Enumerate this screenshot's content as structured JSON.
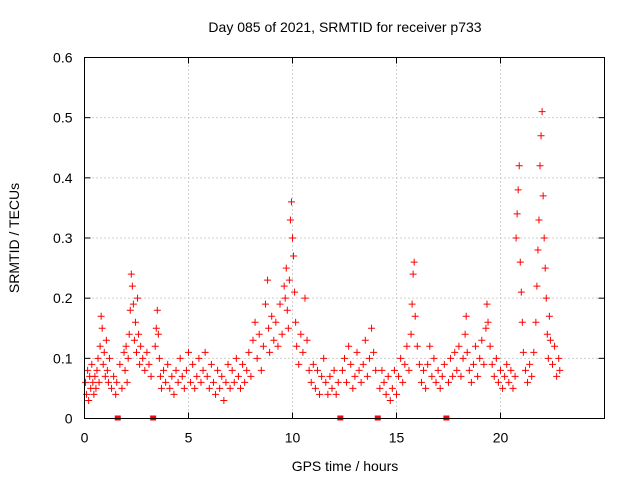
{
  "chart_data": {
    "type": "scatter",
    "title": "Day 085 of 2021, SRMTID for receiver p733",
    "xlabel": "GPS time / hours",
    "ylabel": "SRMTID / TECUs",
    "xlim": [
      0,
      25
    ],
    "ylim": [
      0,
      0.6
    ],
    "xticks": [
      0,
      5,
      10,
      15,
      20
    ],
    "xtick_labels": [
      "0",
      "5",
      "10",
      "15",
      "20"
    ],
    "yticks": [
      0,
      0.1,
      0.2,
      0.3,
      0.4,
      0.5,
      0.6
    ],
    "ytick_labels": [
      "0",
      "0.1",
      "0.2",
      "0.3",
      "0.4",
      "0.5",
      "0.6"
    ],
    "grid": true,
    "marker": "plus",
    "color": "#ff0000",
    "data_gap_markers_x": [
      1.6,
      3.3,
      12.3,
      14.1,
      17.4
    ],
    "series": [
      {
        "name": "SRMTID",
        "points": [
          [
            0.05,
            0.06
          ],
          [
            0.1,
            0.04
          ],
          [
            0.15,
            0.08
          ],
          [
            0.2,
            0.03
          ],
          [
            0.25,
            0.07
          ],
          [
            0.3,
            0.05
          ],
          [
            0.35,
            0.09
          ],
          [
            0.4,
            0.06
          ],
          [
            0.45,
            0.04
          ],
          [
            0.5,
            0.07
          ],
          [
            0.55,
            0.05
          ],
          [
            0.6,
            0.08
          ],
          [
            0.65,
            0.1
          ],
          [
            0.7,
            0.06
          ],
          [
            0.75,
            0.12
          ],
          [
            0.8,
            0.17
          ],
          [
            0.85,
            0.15
          ],
          [
            0.9,
            0.09
          ],
          [
            0.95,
            0.11
          ],
          [
            1.0,
            0.07
          ],
          [
            1.05,
            0.13
          ],
          [
            1.1,
            0.08
          ],
          [
            1.15,
            0.06
          ],
          [
            1.2,
            0.1
          ],
          [
            1.3,
            0.05
          ],
          [
            1.4,
            0.07
          ],
          [
            1.5,
            0.04
          ],
          [
            1.55,
            0.06
          ],
          [
            1.7,
            0.09
          ],
          [
            1.8,
            0.05
          ],
          [
            1.9,
            0.11
          ],
          [
            1.95,
            0.08
          ],
          [
            2.0,
            0.12
          ],
          [
            2.05,
            0.06
          ],
          [
            2.1,
            0.1
          ],
          [
            2.15,
            0.14
          ],
          [
            2.2,
            0.18
          ],
          [
            2.25,
            0.24
          ],
          [
            2.3,
            0.22
          ],
          [
            2.35,
            0.19
          ],
          [
            2.4,
            0.13
          ],
          [
            2.45,
            0.16
          ],
          [
            2.5,
            0.11
          ],
          [
            2.55,
            0.2
          ],
          [
            2.6,
            0.14
          ],
          [
            2.65,
            0.09
          ],
          [
            2.7,
            0.12
          ],
          [
            2.8,
            0.1
          ],
          [
            2.9,
            0.08
          ],
          [
            3.0,
            0.11
          ],
          [
            3.1,
            0.09
          ],
          [
            3.2,
            0.07
          ],
          [
            3.4,
            0.12
          ],
          [
            3.45,
            0.15
          ],
          [
            3.5,
            0.18
          ],
          [
            3.55,
            0.14
          ],
          [
            3.6,
            0.1
          ],
          [
            3.65,
            0.07
          ],
          [
            3.7,
            0.05
          ],
          [
            3.8,
            0.08
          ],
          [
            3.9,
            0.06
          ],
          [
            4.0,
            0.09
          ],
          [
            4.1,
            0.05
          ],
          [
            4.2,
            0.07
          ],
          [
            4.3,
            0.04
          ],
          [
            4.4,
            0.08
          ],
          [
            4.5,
            0.06
          ],
          [
            4.6,
            0.1
          ],
          [
            4.7,
            0.07
          ],
          [
            4.8,
            0.05
          ],
          [
            4.9,
            0.08
          ],
          [
            5.0,
            0.11
          ],
          [
            5.1,
            0.06
          ],
          [
            5.2,
            0.09
          ],
          [
            5.3,
            0.05
          ],
          [
            5.4,
            0.07
          ],
          [
            5.5,
            0.1
          ],
          [
            5.6,
            0.06
          ],
          [
            5.7,
            0.08
          ],
          [
            5.8,
            0.11
          ],
          [
            5.9,
            0.07
          ],
          [
            6.0,
            0.05
          ],
          [
            6.1,
            0.09
          ],
          [
            6.2,
            0.06
          ],
          [
            6.3,
            0.04
          ],
          [
            6.4,
            0.08
          ],
          [
            6.5,
            0.05
          ],
          [
            6.6,
            0.07
          ],
          [
            6.7,
            0.03
          ],
          [
            6.8,
            0.06
          ],
          [
            6.9,
            0.09
          ],
          [
            7.0,
            0.05
          ],
          [
            7.1,
            0.08
          ],
          [
            7.2,
            0.06
          ],
          [
            7.3,
            0.1
          ],
          [
            7.4,
            0.07
          ],
          [
            7.5,
            0.05
          ],
          [
            7.6,
            0.09
          ],
          [
            7.7,
            0.06
          ],
          [
            7.8,
            0.08
          ],
          [
            7.9,
            0.11
          ],
          [
            8.0,
            0.07
          ],
          [
            8.1,
            0.13
          ],
          [
            8.2,
            0.16
          ],
          [
            8.3,
            0.1
          ],
          [
            8.4,
            0.14
          ],
          [
            8.5,
            0.08
          ],
          [
            8.6,
            0.12
          ],
          [
            8.7,
            0.19
          ],
          [
            8.8,
            0.23
          ],
          [
            8.85,
            0.15
          ],
          [
            8.9,
            0.11
          ],
          [
            9.0,
            0.17
          ],
          [
            9.1,
            0.13
          ],
          [
            9.2,
            0.16
          ],
          [
            9.3,
            0.12
          ],
          [
            9.4,
            0.19
          ],
          [
            9.5,
            0.14
          ],
          [
            9.6,
            0.22
          ],
          [
            9.65,
            0.2
          ],
          [
            9.7,
            0.25
          ],
          [
            9.75,
            0.18
          ],
          [
            9.8,
            0.15
          ],
          [
            9.85,
            0.23
          ],
          [
            9.9,
            0.33
          ],
          [
            9.95,
            0.36
          ],
          [
            10.0,
            0.3
          ],
          [
            10.05,
            0.27
          ],
          [
            10.1,
            0.21
          ],
          [
            10.15,
            0.16
          ],
          [
            10.2,
            0.12
          ],
          [
            10.3,
            0.09
          ],
          [
            10.4,
            0.14
          ],
          [
            10.5,
            0.11
          ],
          [
            10.6,
            0.2
          ],
          [
            10.7,
            0.13
          ],
          [
            10.8,
            0.08
          ],
          [
            10.9,
            0.06
          ],
          [
            11.0,
            0.09
          ],
          [
            11.1,
            0.05
          ],
          [
            11.2,
            0.08
          ],
          [
            11.3,
            0.04
          ],
          [
            11.4,
            0.07
          ],
          [
            11.5,
            0.1
          ],
          [
            11.6,
            0.06
          ],
          [
            11.7,
            0.04
          ],
          [
            11.8,
            0.07
          ],
          [
            11.9,
            0.05
          ],
          [
            12.0,
            0.08
          ],
          [
            12.1,
            0.04
          ],
          [
            12.2,
            0.06
          ],
          [
            12.4,
            0.08
          ],
          [
            12.5,
            0.1
          ],
          [
            12.6,
            0.06
          ],
          [
            12.7,
            0.12
          ],
          [
            12.8,
            0.09
          ],
          [
            12.9,
            0.05
          ],
          [
            13.0,
            0.07
          ],
          [
            13.1,
            0.11
          ],
          [
            13.2,
            0.08
          ],
          [
            13.3,
            0.06
          ],
          [
            13.4,
            0.09
          ],
          [
            13.5,
            0.13
          ],
          [
            13.6,
            0.07
          ],
          [
            13.7,
            0.1
          ],
          [
            13.8,
            0.15
          ],
          [
            13.9,
            0.11
          ],
          [
            14.0,
            0.08
          ],
          [
            14.2,
            0.05
          ],
          [
            14.3,
            0.08
          ],
          [
            14.4,
            0.06
          ],
          [
            14.5,
            0.04
          ],
          [
            14.6,
            0.07
          ],
          [
            14.7,
            0.03
          ],
          [
            14.8,
            0.05
          ],
          [
            14.9,
            0.08
          ],
          [
            15.0,
            0.04
          ],
          [
            15.1,
            0.07
          ],
          [
            15.2,
            0.1
          ],
          [
            15.3,
            0.06
          ],
          [
            15.4,
            0.09
          ],
          [
            15.5,
            0.12
          ],
          [
            15.6,
            0.08
          ],
          [
            15.7,
            0.14
          ],
          [
            15.75,
            0.19
          ],
          [
            15.8,
            0.24
          ],
          [
            15.85,
            0.26
          ],
          [
            15.9,
            0.17
          ],
          [
            16.0,
            0.12
          ],
          [
            16.1,
            0.09
          ],
          [
            16.2,
            0.06
          ],
          [
            16.3,
            0.08
          ],
          [
            16.4,
            0.05
          ],
          [
            16.5,
            0.09
          ],
          [
            16.6,
            0.12
          ],
          [
            16.7,
            0.07
          ],
          [
            16.8,
            0.1
          ],
          [
            16.9,
            0.06
          ],
          [
            17.0,
            0.08
          ],
          [
            17.1,
            0.05
          ],
          [
            17.2,
            0.07
          ],
          [
            17.3,
            0.09
          ],
          [
            17.5,
            0.06
          ],
          [
            17.6,
            0.1
          ],
          [
            17.7,
            0.07
          ],
          [
            17.8,
            0.11
          ],
          [
            17.9,
            0.08
          ],
          [
            18.0,
            0.12
          ],
          [
            18.1,
            0.07
          ],
          [
            18.2,
            0.1
          ],
          [
            18.3,
            0.14
          ],
          [
            18.35,
            0.17
          ],
          [
            18.4,
            0.11
          ],
          [
            18.5,
            0.08
          ],
          [
            18.6,
            0.06
          ],
          [
            18.7,
            0.09
          ],
          [
            18.8,
            0.12
          ],
          [
            18.9,
            0.07
          ],
          [
            19.0,
            0.1
          ],
          [
            19.1,
            0.13
          ],
          [
            19.2,
            0.09
          ],
          [
            19.3,
            0.15
          ],
          [
            19.35,
            0.19
          ],
          [
            19.4,
            0.16
          ],
          [
            19.5,
            0.12
          ],
          [
            19.6,
            0.09
          ],
          [
            19.7,
            0.07
          ],
          [
            19.8,
            0.1
          ],
          [
            19.9,
            0.06
          ],
          [
            20.0,
            0.08
          ],
          [
            20.1,
            0.05
          ],
          [
            20.2,
            0.07
          ],
          [
            20.3,
            0.09
          ],
          [
            20.4,
            0.06
          ],
          [
            20.5,
            0.08
          ],
          [
            20.6,
            0.05
          ],
          [
            20.7,
            0.07
          ],
          [
            20.75,
            0.3
          ],
          [
            20.8,
            0.34
          ],
          [
            20.85,
            0.38
          ],
          [
            20.9,
            0.42
          ],
          [
            20.95,
            0.26
          ],
          [
            21.0,
            0.21
          ],
          [
            21.05,
            0.16
          ],
          [
            21.1,
            0.11
          ],
          [
            21.2,
            0.08
          ],
          [
            21.3,
            0.06
          ],
          [
            21.4,
            0.09
          ],
          [
            21.5,
            0.07
          ],
          [
            21.6,
            0.11
          ],
          [
            21.7,
            0.16
          ],
          [
            21.75,
            0.22
          ],
          [
            21.8,
            0.28
          ],
          [
            21.85,
            0.33
          ],
          [
            21.9,
            0.42
          ],
          [
            21.95,
            0.47
          ],
          [
            22.0,
            0.51
          ],
          [
            22.05,
            0.37
          ],
          [
            22.1,
            0.3
          ],
          [
            22.15,
            0.25
          ],
          [
            22.2,
            0.2
          ],
          [
            22.25,
            0.14
          ],
          [
            22.3,
            0.1
          ],
          [
            22.35,
            0.17
          ],
          [
            22.4,
            0.13
          ],
          [
            22.5,
            0.09
          ],
          [
            22.6,
            0.12
          ],
          [
            22.7,
            0.07
          ],
          [
            22.8,
            0.1
          ],
          [
            22.85,
            0.08
          ]
        ]
      }
    ]
  }
}
